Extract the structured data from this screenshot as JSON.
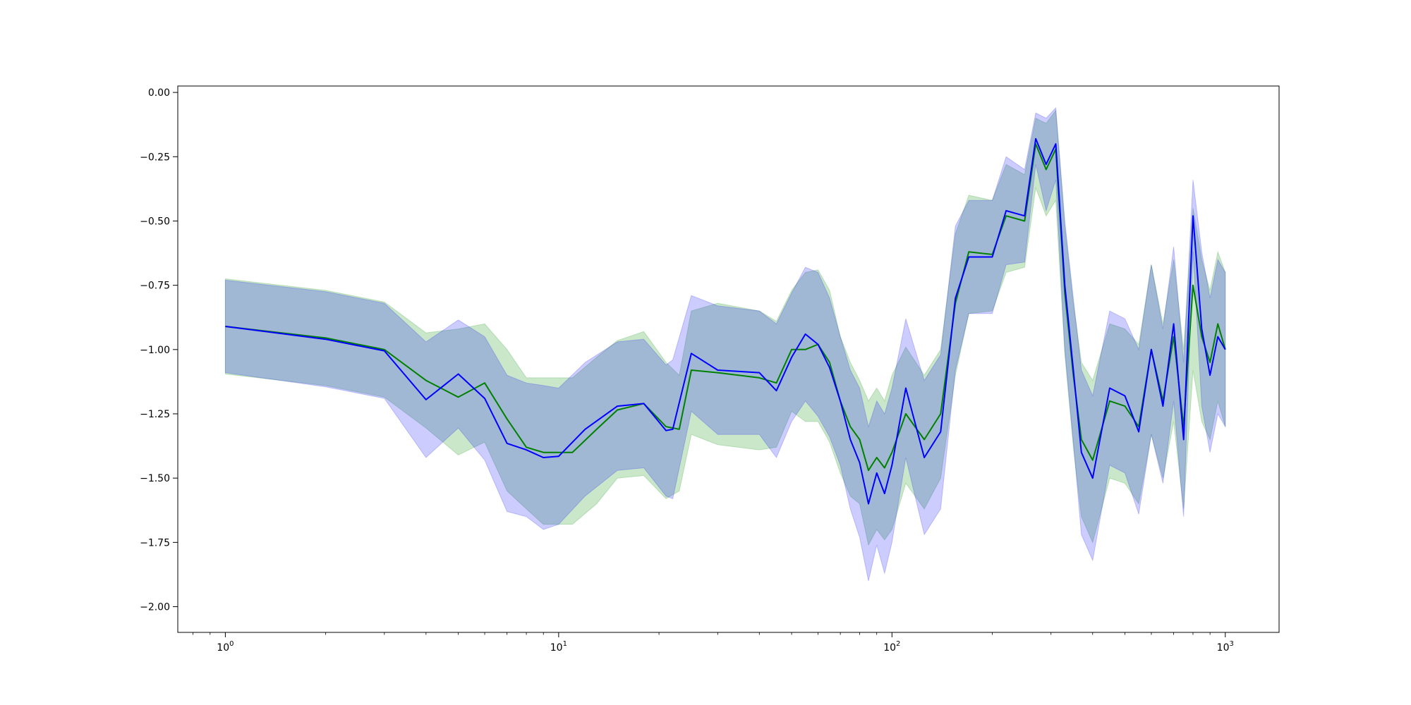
{
  "chart_data": {
    "type": "line",
    "title": "",
    "xlabel": "",
    "ylabel": "",
    "xscale": "log",
    "xlim": [
      0.72,
      1450
    ],
    "ylim": [
      -2.1,
      0.025
    ],
    "grid": false,
    "legend": "none",
    "x_ticks": [
      {
        "value": 1,
        "base": "10",
        "exp": "0"
      },
      {
        "value": 10,
        "base": "10",
        "exp": "1"
      },
      {
        "value": 100,
        "base": "10",
        "exp": "2"
      },
      {
        "value": 1000,
        "base": "10",
        "exp": "3"
      }
    ],
    "y_ticks": [
      {
        "value": 0,
        "label": "0.00"
      },
      {
        "value": -0.25,
        "label": "−0.25"
      },
      {
        "value": -0.5,
        "label": "−0.50"
      },
      {
        "value": -0.75,
        "label": "−0.75"
      },
      {
        "value": -1.0,
        "label": "−1.00"
      },
      {
        "value": -1.25,
        "label": "−1.25"
      },
      {
        "value": -1.5,
        "label": "−1.50"
      },
      {
        "value": -1.75,
        "label": "−1.75"
      },
      {
        "value": -2.0,
        "label": "−2.00"
      }
    ],
    "series": [
      {
        "color": "#008000",
        "band_color": "#2ca02c",
        "band_opacity": 0.25,
        "x": [
          1,
          2,
          3,
          4,
          5,
          6,
          7,
          8,
          9,
          11,
          13,
          15,
          18,
          21,
          23,
          25,
          30,
          40,
          45,
          50,
          55,
          60,
          65,
          70,
          75,
          80,
          85,
          90,
          95,
          100,
          110,
          125,
          140,
          155,
          170,
          200,
          220,
          250,
          270,
          290,
          310,
          330,
          350,
          370,
          400,
          450,
          500,
          550,
          600,
          650,
          700,
          750,
          800,
          850,
          900,
          950,
          1000
        ],
        "y": [
          -0.91,
          -0.955,
          -1.0,
          -1.12,
          -1.185,
          -1.13,
          -1.27,
          -1.38,
          -1.4,
          -1.4,
          -1.31,
          -1.235,
          -1.21,
          -1.3,
          -1.31,
          -1.08,
          -1.09,
          -1.11,
          -1.13,
          -1.0,
          -1.0,
          -0.98,
          -1.05,
          -1.2,
          -1.3,
          -1.35,
          -1.47,
          -1.42,
          -1.46,
          -1.4,
          -1.25,
          -1.35,
          -1.25,
          -0.82,
          -0.62,
          -0.63,
          -0.48,
          -0.5,
          -0.2,
          -0.3,
          -0.22,
          -0.78,
          -1.1,
          -1.35,
          -1.43,
          -1.2,
          -1.22,
          -1.3,
          -1.0,
          -1.2,
          -0.95,
          -1.3,
          -0.75,
          -0.95,
          -1.05,
          -0.9,
          -1.0
        ],
        "upper": [
          -0.725,
          -0.77,
          -0.815,
          -0.935,
          -0.92,
          -0.9,
          -1.0,
          -1.11,
          -1.11,
          -1.11,
          -1.03,
          -0.965,
          -0.93,
          -1.05,
          -1.1,
          -0.85,
          -0.82,
          -0.85,
          -0.89,
          -0.77,
          -0.7,
          -0.69,
          -0.77,
          -0.95,
          -1.05,
          -1.12,
          -1.2,
          -1.15,
          -1.2,
          -1.1,
          -0.99,
          -1.1,
          -1.0,
          -0.55,
          -0.4,
          -0.42,
          -0.28,
          -0.32,
          -0.1,
          -0.12,
          -0.07,
          -0.52,
          -0.82,
          -1.05,
          -1.12,
          -0.9,
          -0.92,
          -0.98,
          -0.67,
          -0.9,
          -0.65,
          -1.0,
          -0.45,
          -0.65,
          -0.77,
          -0.62,
          -0.7
        ],
        "lower": [
          -1.095,
          -1.14,
          -1.185,
          -1.305,
          -1.41,
          -1.36,
          -1.55,
          -1.62,
          -1.68,
          -1.68,
          -1.6,
          -1.5,
          -1.49,
          -1.58,
          -1.55,
          -1.33,
          -1.37,
          -1.39,
          -1.38,
          -1.24,
          -1.28,
          -1.28,
          -1.36,
          -1.48,
          -1.57,
          -1.6,
          -1.76,
          -1.7,
          -1.74,
          -1.7,
          -1.52,
          -1.62,
          -1.5,
          -1.1,
          -0.86,
          -0.85,
          -0.7,
          -0.68,
          -0.37,
          -0.48,
          -0.42,
          -1.02,
          -1.38,
          -1.65,
          -1.75,
          -1.5,
          -1.52,
          -1.6,
          -1.33,
          -1.5,
          -1.28,
          -1.62,
          -1.08,
          -1.28,
          -1.35,
          -1.2,
          -1.3
        ]
      },
      {
        "color": "#0000ff",
        "band_color": "#0000ff",
        "band_opacity": 0.2,
        "x": [
          1,
          2,
          3,
          4,
          5,
          6,
          7,
          8,
          9,
          10,
          12,
          15,
          18,
          21,
          22,
          25,
          30,
          40,
          45,
          50,
          55,
          60,
          65,
          70,
          75,
          80,
          85,
          90,
          95,
          100,
          110,
          125,
          140,
          155,
          170,
          200,
          220,
          250,
          270,
          290,
          310,
          330,
          350,
          370,
          400,
          450,
          500,
          550,
          600,
          650,
          700,
          750,
          800,
          850,
          900,
          950,
          1000
        ],
        "y": [
          -0.91,
          -0.96,
          -1.005,
          -1.195,
          -1.095,
          -1.19,
          -1.365,
          -1.39,
          -1.42,
          -1.415,
          -1.31,
          -1.22,
          -1.21,
          -1.315,
          -1.31,
          -1.015,
          -1.08,
          -1.09,
          -1.16,
          -1.03,
          -0.94,
          -0.98,
          -1.07,
          -1.2,
          -1.35,
          -1.44,
          -1.6,
          -1.48,
          -1.56,
          -1.45,
          -1.15,
          -1.42,
          -1.32,
          -0.8,
          -0.64,
          -0.64,
          -0.46,
          -0.48,
          -0.18,
          -0.28,
          -0.2,
          -0.75,
          -1.08,
          -1.4,
          -1.5,
          -1.15,
          -1.18,
          -1.32,
          -1.0,
          -1.22,
          -0.9,
          -1.35,
          -0.48,
          -0.92,
          -1.1,
          -0.95,
          -1.0
        ],
        "upper": [
          -0.73,
          -0.775,
          -0.82,
          -0.97,
          -0.885,
          -0.95,
          -1.1,
          -1.13,
          -1.14,
          -1.15,
          -1.05,
          -0.97,
          -0.96,
          -1.06,
          -1.04,
          -0.79,
          -0.83,
          -0.85,
          -0.9,
          -0.78,
          -0.68,
          -0.7,
          -0.8,
          -0.95,
          -1.08,
          -1.15,
          -1.3,
          -1.2,
          -1.25,
          -1.15,
          -0.88,
          -1.12,
          -1.02,
          -0.52,
          -0.42,
          -0.42,
          -0.25,
          -0.3,
          -0.08,
          -0.1,
          -0.06,
          -0.5,
          -0.8,
          -1.08,
          -1.18,
          -0.85,
          -0.88,
          -1.0,
          -0.67,
          -0.92,
          -0.6,
          -1.05,
          -0.34,
          -0.62,
          -0.8,
          -0.65,
          -0.7
        ],
        "lower": [
          -1.09,
          -1.145,
          -1.19,
          -1.42,
          -1.305,
          -1.43,
          -1.63,
          -1.65,
          -1.7,
          -1.68,
          -1.57,
          -1.47,
          -1.46,
          -1.57,
          -1.58,
          -1.24,
          -1.33,
          -1.33,
          -1.42,
          -1.28,
          -1.2,
          -1.26,
          -1.34,
          -1.45,
          -1.62,
          -1.73,
          -1.9,
          -1.76,
          -1.87,
          -1.75,
          -1.42,
          -1.72,
          -1.62,
          -1.08,
          -0.86,
          -0.86,
          -0.67,
          -0.66,
          -0.28,
          -0.46,
          -0.34,
          -1.0,
          -1.36,
          -1.72,
          -1.82,
          -1.45,
          -1.48,
          -1.64,
          -1.33,
          -1.52,
          -1.2,
          -1.65,
          -0.62,
          -1.22,
          -1.4,
          -1.25,
          -1.3
        ]
      }
    ]
  }
}
